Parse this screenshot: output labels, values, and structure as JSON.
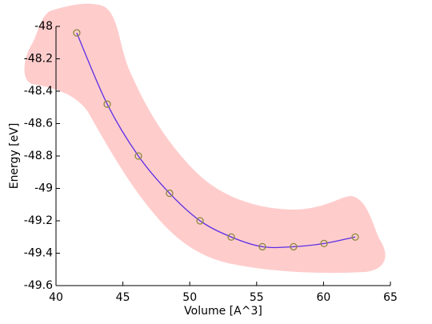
{
  "chart_data": {
    "type": "line-scatter",
    "x_label": "Volume [A^3]",
    "y_label": "Energy [eV]",
    "x": [
      41.55,
      43.83,
      46.16,
      48.49,
      50.77,
      53.1,
      55.43,
      57.76,
      60.04,
      62.37
    ],
    "values": [
      -48.04,
      -48.48,
      -48.8,
      -49.03,
      -49.2,
      -49.3,
      -49.36,
      -49.36,
      -49.34,
      -49.3
    ],
    "line_color": "#5b2ee6",
    "marker_color": "#8a8a3c",
    "band_color": "#ffcccc",
    "xlim": [
      40,
      65
    ],
    "xticks": [
      40,
      45,
      50,
      55,
      60,
      65
    ],
    "ylim": [
      -49.6,
      -48
    ],
    "yticks": [
      -48,
      -48.2,
      -48.4,
      -48.6,
      -48.8,
      -49,
      -49.2,
      -49.4,
      -49.6
    ]
  }
}
